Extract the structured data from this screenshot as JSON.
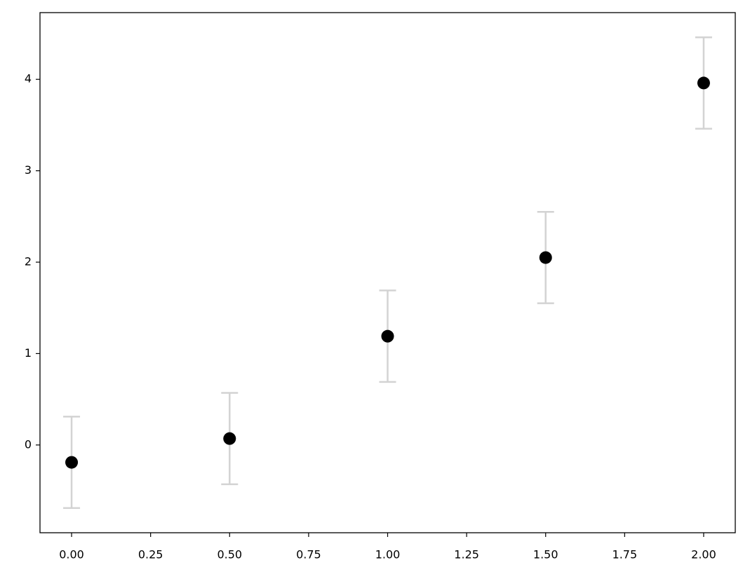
{
  "chart_data": {
    "type": "scatter",
    "x": [
      0,
      0.5,
      1,
      1.5,
      2
    ],
    "values": [
      -0.19,
      0.07,
      1.19,
      2.05,
      3.96
    ],
    "errors": [
      0.5,
      0.5,
      0.5,
      0.5,
      0.5
    ],
    "color": "#000000",
    "error_color": "#d3d3d3",
    "xlim": [
      -0.1,
      2.1
    ],
    "ylim": [
      -0.96,
      4.73
    ],
    "xticks": [
      {
        "value": 0,
        "label": "0.00"
      },
      {
        "value": 0.25,
        "label": "0.25"
      },
      {
        "value": 0.5,
        "label": "0.50"
      },
      {
        "value": 0.75,
        "label": "0.75"
      },
      {
        "value": 1,
        "label": "1.00"
      },
      {
        "value": 1.25,
        "label": "1.25"
      },
      {
        "value": 1.5,
        "label": "1.50"
      },
      {
        "value": 1.75,
        "label": "1.75"
      },
      {
        "value": 2,
        "label": "2.00"
      }
    ],
    "yticks": [
      0,
      1,
      2,
      3,
      4
    ],
    "grid": false
  }
}
